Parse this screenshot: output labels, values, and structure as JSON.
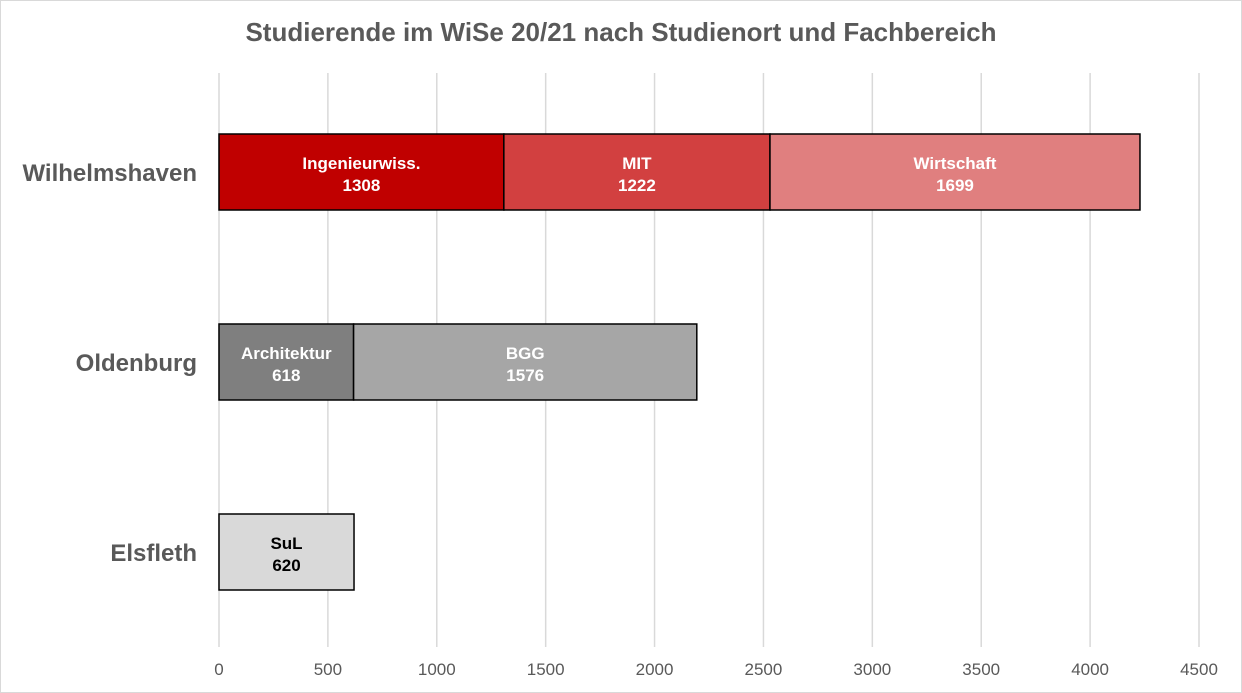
{
  "chart_data": {
    "type": "bar",
    "orientation": "horizontal",
    "stacked": true,
    "title": "Studierende im WiSe 20/21 nach Studienort und Fachbereich",
    "xlabel": "",
    "ylabel": "",
    "xlim": [
      0,
      4500
    ],
    "xticks": [
      0,
      500,
      1000,
      1500,
      2000,
      2500,
      3000,
      3500,
      4000,
      4500
    ],
    "grid": true,
    "legend": "none",
    "categories": [
      "Wilhelmshaven",
      "Oldenburg",
      "Elsfleth"
    ],
    "rows": [
      {
        "category": "Wilhelmshaven",
        "segments": [
          {
            "label": "Ingenieurwiss.",
            "value": 1308,
            "color": "#c00000",
            "text_color": "#ffffff"
          },
          {
            "label": "MIT",
            "value": 1222,
            "color": "#d24040",
            "text_color": "#ffffff"
          },
          {
            "label": "Wirtschaft",
            "value": 1699,
            "color": "#e07f7f",
            "text_color": "#ffffff"
          }
        ]
      },
      {
        "category": "Oldenburg",
        "segments": [
          {
            "label": "Architektur",
            "value": 618,
            "color": "#7f7f7f",
            "text_color": "#ffffff"
          },
          {
            "label": "BGG",
            "value": 1576,
            "color": "#a6a6a6",
            "text_color": "#ffffff"
          }
        ]
      },
      {
        "category": "Elsfleth",
        "segments": [
          {
            "label": "SuL",
            "value": 620,
            "color": "#d9d9d9",
            "text_color": "#000000"
          }
        ]
      }
    ],
    "colors": {
      "gridline": "#d9d9d9",
      "axis_text": "#595959",
      "bar_border": "#000000"
    }
  }
}
